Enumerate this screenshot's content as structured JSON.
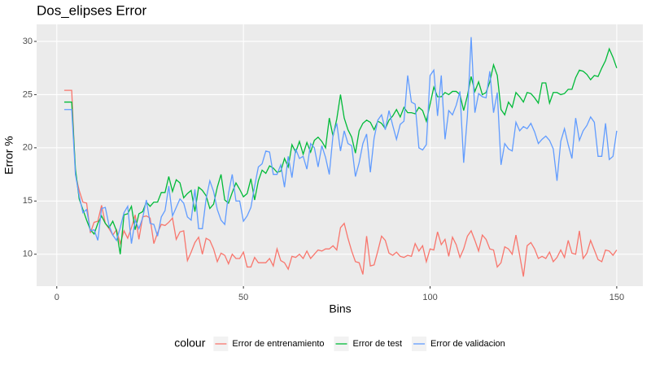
{
  "chart_data": {
    "type": "line",
    "title": "Dos_elipses Error",
    "x_label": "Bins",
    "y_label": "Error %",
    "legend_title": "colour",
    "legend_position": "bottom",
    "grid": true,
    "xlim": [
      -5.4,
      157
    ],
    "ylim": [
      7.0,
      31.6
    ],
    "xticks": [
      0,
      50,
      100,
      150
    ],
    "yticks": [
      10,
      15,
      20,
      25,
      30
    ],
    "x": [
      2,
      3,
      4,
      5,
      6,
      7,
      8,
      9,
      10,
      11,
      12,
      13,
      14,
      15,
      16,
      17,
      18,
      19,
      20,
      21,
      22,
      23,
      24,
      25,
      26,
      27,
      28,
      29,
      30,
      31,
      32,
      33,
      34,
      35,
      36,
      37,
      38,
      39,
      40,
      41,
      42,
      43,
      44,
      45,
      46,
      47,
      48,
      49,
      50,
      51,
      52,
      53,
      54,
      55,
      56,
      57,
      58,
      59,
      60,
      61,
      62,
      63,
      64,
      65,
      66,
      67,
      68,
      69,
      70,
      71,
      72,
      73,
      74,
      75,
      76,
      77,
      78,
      79,
      80,
      81,
      82,
      83,
      84,
      85,
      86,
      87,
      88,
      89,
      90,
      91,
      92,
      93,
      94,
      95,
      96,
      97,
      98,
      99,
      100,
      101,
      102,
      103,
      104,
      105,
      106,
      107,
      108,
      109,
      110,
      111,
      112,
      113,
      114,
      115,
      116,
      117,
      118,
      119,
      120,
      121,
      122,
      123,
      124,
      125,
      126,
      127,
      128,
      129,
      130,
      131,
      132,
      133,
      134,
      135,
      136,
      137,
      138,
      139,
      140,
      141,
      142,
      143,
      144,
      145,
      146,
      147,
      148,
      149,
      150
    ],
    "series": [
      {
        "name": "Error de entrenamiento",
        "color": "#F8766D",
        "values": [
          25.4,
          25.4,
          25.4,
          17.5,
          16,
          14.9,
          14.8,
          12,
          13,
          13.1,
          14.6,
          12.9,
          12.4,
          11.8,
          12.3,
          11,
          12.2,
          11.5,
          12.5,
          13.7,
          11.4,
          13.5,
          13.6,
          13.4,
          11,
          12,
          12.8,
          12.7,
          13,
          13.4,
          11.4,
          12.1,
          12.2,
          9.4,
          10.2,
          11.1,
          11.6,
          10,
          11.5,
          11.3,
          10.5,
          9.3,
          10.1,
          9.9,
          9.1,
          10,
          9.6,
          9.6,
          10.2,
          8.8,
          8.8,
          9.7,
          9.2,
          9.2,
          9.2,
          9.6,
          8.9,
          10.5,
          9.4,
          9.2,
          8.6,
          9.8,
          9.7,
          10,
          9.6,
          10.3,
          9.6,
          10,
          10.4,
          10.3,
          10.5,
          10.5,
          10.8,
          10.4,
          12.5,
          12.9,
          11.5,
          10.3,
          9.3,
          9.2,
          8.1,
          11.7,
          8.9,
          9,
          10.3,
          11.7,
          11.3,
          10.1,
          9.9,
          10.2,
          9.8,
          9.7,
          9.9,
          9.8,
          11,
          10.3,
          10.8,
          9.3,
          10.5,
          10.4,
          12.1,
          10.9,
          11.4,
          9.8,
          11.6,
          10.9,
          9.7,
          10.5,
          11.7,
          12.2,
          11.3,
          10.3,
          11.8,
          11.4,
          10.5,
          10.4,
          8.8,
          9.2,
          10.7,
          10.5,
          10,
          11.8,
          9.9,
          7.9,
          10.8,
          11.1,
          10.5,
          9.6,
          9.8,
          9.6,
          10.2,
          9.3,
          9.7,
          10.4,
          9.7,
          11.3,
          10.1,
          10,
          12.2,
          9.6,
          10.1,
          11.3,
          10.4,
          9.5,
          9.3,
          10.4,
          10.3,
          9.9,
          10.4
        ]
      },
      {
        "name": "Error de test",
        "color": "#00BA38",
        "values": [
          24.3,
          24.3,
          24.3,
          18,
          15.2,
          14.2,
          13.2,
          12.3,
          11.9,
          12.9,
          13.6,
          12.9,
          12.5,
          13.1,
          12.2,
          10,
          13.7,
          13.8,
          14.5,
          12.3,
          13.8,
          14,
          14.9,
          14.5,
          14.9,
          14.9,
          15.8,
          15.8,
          17.3,
          15.9,
          17,
          16.7,
          15.3,
          15.7,
          16,
          14,
          16.3,
          16,
          15.5,
          14.3,
          14.7,
          16.3,
          17.5,
          15.1,
          14.8,
          15.8,
          16.7,
          16.1,
          15.4,
          15.7,
          17.1,
          15.1,
          16.9,
          17.9,
          17.6,
          18.3,
          18.1,
          17.7,
          17.8,
          19,
          18.2,
          20.3,
          19.6,
          20.6,
          19.4,
          20.5,
          19.6,
          20.7,
          21,
          20.6,
          20,
          22.8,
          21.1,
          22.7,
          25,
          22.8,
          21.7,
          21,
          19.5,
          21.6,
          22.3,
          22.6,
          22.4,
          21.7,
          22.5,
          22.3,
          21.8,
          22.6,
          23,
          23.6,
          22.9,
          23.8,
          23.3,
          23.3,
          23.2,
          23.8,
          23.5,
          22.5,
          24.1,
          25.7,
          24.8,
          24.8,
          25.2,
          25,
          25.3,
          25.3,
          25,
          23.5,
          24.9,
          26.7,
          25.3,
          26.2,
          25,
          25.2,
          26.2,
          27.8,
          26.8,
          23.6,
          23.1,
          24.3,
          23.8,
          25.2,
          24.8,
          24.3,
          25.2,
          25.1,
          24.7,
          24.2,
          26.1,
          26.1,
          24.2,
          25.2,
          25.2,
          25,
          25.1,
          25.5,
          25.5,
          26.6,
          27.3,
          27.2,
          26.9,
          26.4,
          26.8,
          26.7,
          27.5,
          28.2,
          29.3,
          28.5,
          27.5
        ]
      },
      {
        "name": "Error de validacion",
        "color": "#619CFF",
        "values": [
          23.6,
          23.6,
          23.6,
          17.5,
          15.5,
          13.9,
          14.2,
          12.2,
          12.3,
          11.3,
          14.3,
          14.4,
          12.7,
          11.8,
          11.3,
          12.5,
          13.9,
          14.5,
          11,
          13.2,
          12.4,
          13.4,
          15.1,
          12.9,
          12.8,
          11.7,
          13.5,
          14.1,
          16.4,
          13.6,
          14.4,
          15.2,
          14.8,
          13.5,
          13.2,
          16.1,
          12.4,
          12.4,
          15.2,
          16.9,
          15.9,
          14.2,
          13.2,
          12.8,
          15.7,
          17.5,
          15,
          15,
          13.1,
          13.6,
          14.4,
          16.4,
          18.2,
          18.5,
          19.7,
          19.6,
          17.5,
          17.5,
          18.4,
          16.3,
          19.2,
          17.2,
          19.9,
          19,
          19.2,
          18,
          20.4,
          20,
          18.2,
          20.2,
          19.1,
          17.5,
          21.2,
          22.3,
          19.7,
          21.6,
          20.4,
          20.2,
          17.3,
          18.6,
          20.4,
          21.3,
          17.7,
          20.9,
          22.6,
          23.1,
          21.7,
          23.5,
          22.1,
          20.8,
          22.2,
          22.5,
          26.8,
          24.3,
          24.1,
          20,
          19.8,
          20.3,
          26.8,
          27.3,
          23,
          26.8,
          20.8,
          23.5,
          23.1,
          24,
          25.3,
          18.6,
          23,
          30.4,
          23.3,
          25.1,
          24.8,
          24.7,
          27.2,
          23.3,
          25.2,
          18.4,
          20.4,
          19.9,
          19.7,
          22.4,
          21.6,
          22,
          21.8,
          22.3,
          21.5,
          20.4,
          20.8,
          21.1,
          20.7,
          19.9,
          16.9,
          20.6,
          21.8,
          20.3,
          19,
          22.8,
          20.7,
          21.6,
          22.1,
          22.9,
          22.4,
          19.2,
          19.2,
          22.3,
          18.9,
          19.2,
          21.6
        ]
      }
    ]
  }
}
